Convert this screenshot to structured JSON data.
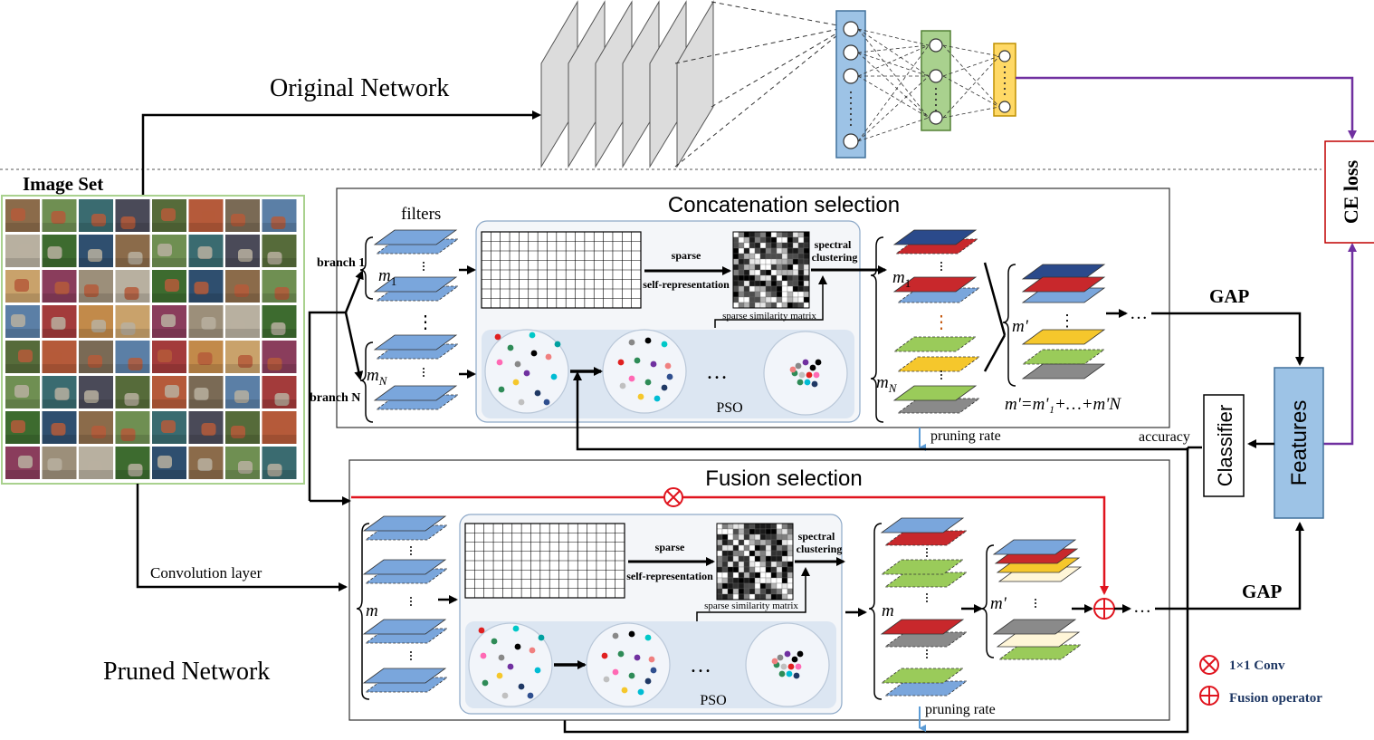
{
  "labels": {
    "original_network": "Original Network",
    "pruned_network": "Pruned Network",
    "image_set": "Image Set",
    "convolution_layer": "Convolution layer",
    "ce_loss": "CE loss",
    "classifier": "Classifier",
    "features": "Features",
    "accuracy": "accuracy",
    "gap": "GAP",
    "pso": "PSO",
    "filters": "filters",
    "branch1": "branch 1",
    "branchN": "branch N",
    "sparse": "sparse",
    "self_representation": "self-representation",
    "spectral": "spectral",
    "clustering": "clustering",
    "sparse_similarity_matrix": "sparse similarity matrix",
    "pruning_rate": "pruning rate",
    "dots": "…",
    "vdots": "⋮",
    "m1_base": "m",
    "m1_sub": "1",
    "mN_base": "m",
    "mN_sub": "N",
    "m": "m",
    "m_prime": "m'",
    "m_prime_formula": "m'=m'₁+…+m'N"
  },
  "panels": {
    "concat_title": "Concatenation selection",
    "fusion_title": "Fusion selection"
  },
  "legend": {
    "conv": "1×1 Conv",
    "fusion": "Fusion operator"
  },
  "colors": {
    "blue_plate": "#7aa6dc",
    "navy_plate": "#2b4a8b",
    "red_plate": "#c8282c",
    "green_plate": "#9acb5a",
    "yellow_plate": "#f5c72c",
    "gray_plate": "#8a8a8a",
    "cream_plate": "#fff6d8",
    "purple_line": "#7030a0",
    "red_line": "#e0141e",
    "panel_fill": "#f6f7f9",
    "pso_band": "#dce6f2"
  }
}
